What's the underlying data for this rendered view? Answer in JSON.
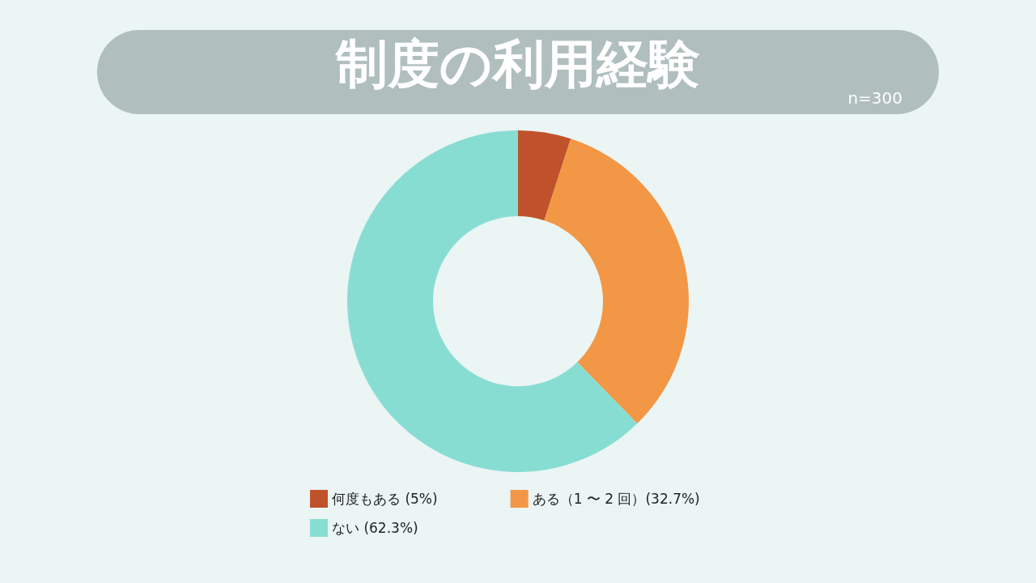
{
  "chart_data": {
    "type": "donut",
    "title": "制度の利用経験",
    "subtitle": "n=300",
    "categories": [
      "何度もある (5%)",
      "ある（1 〜 2 回）(32.7%)",
      "ない (62.3%)"
    ],
    "values": [
      5,
      32.7,
      62.3
    ],
    "colors": [
      "#c0522b",
      "#f29745",
      "#88ddd3"
    ],
    "legend": "bottom"
  }
}
